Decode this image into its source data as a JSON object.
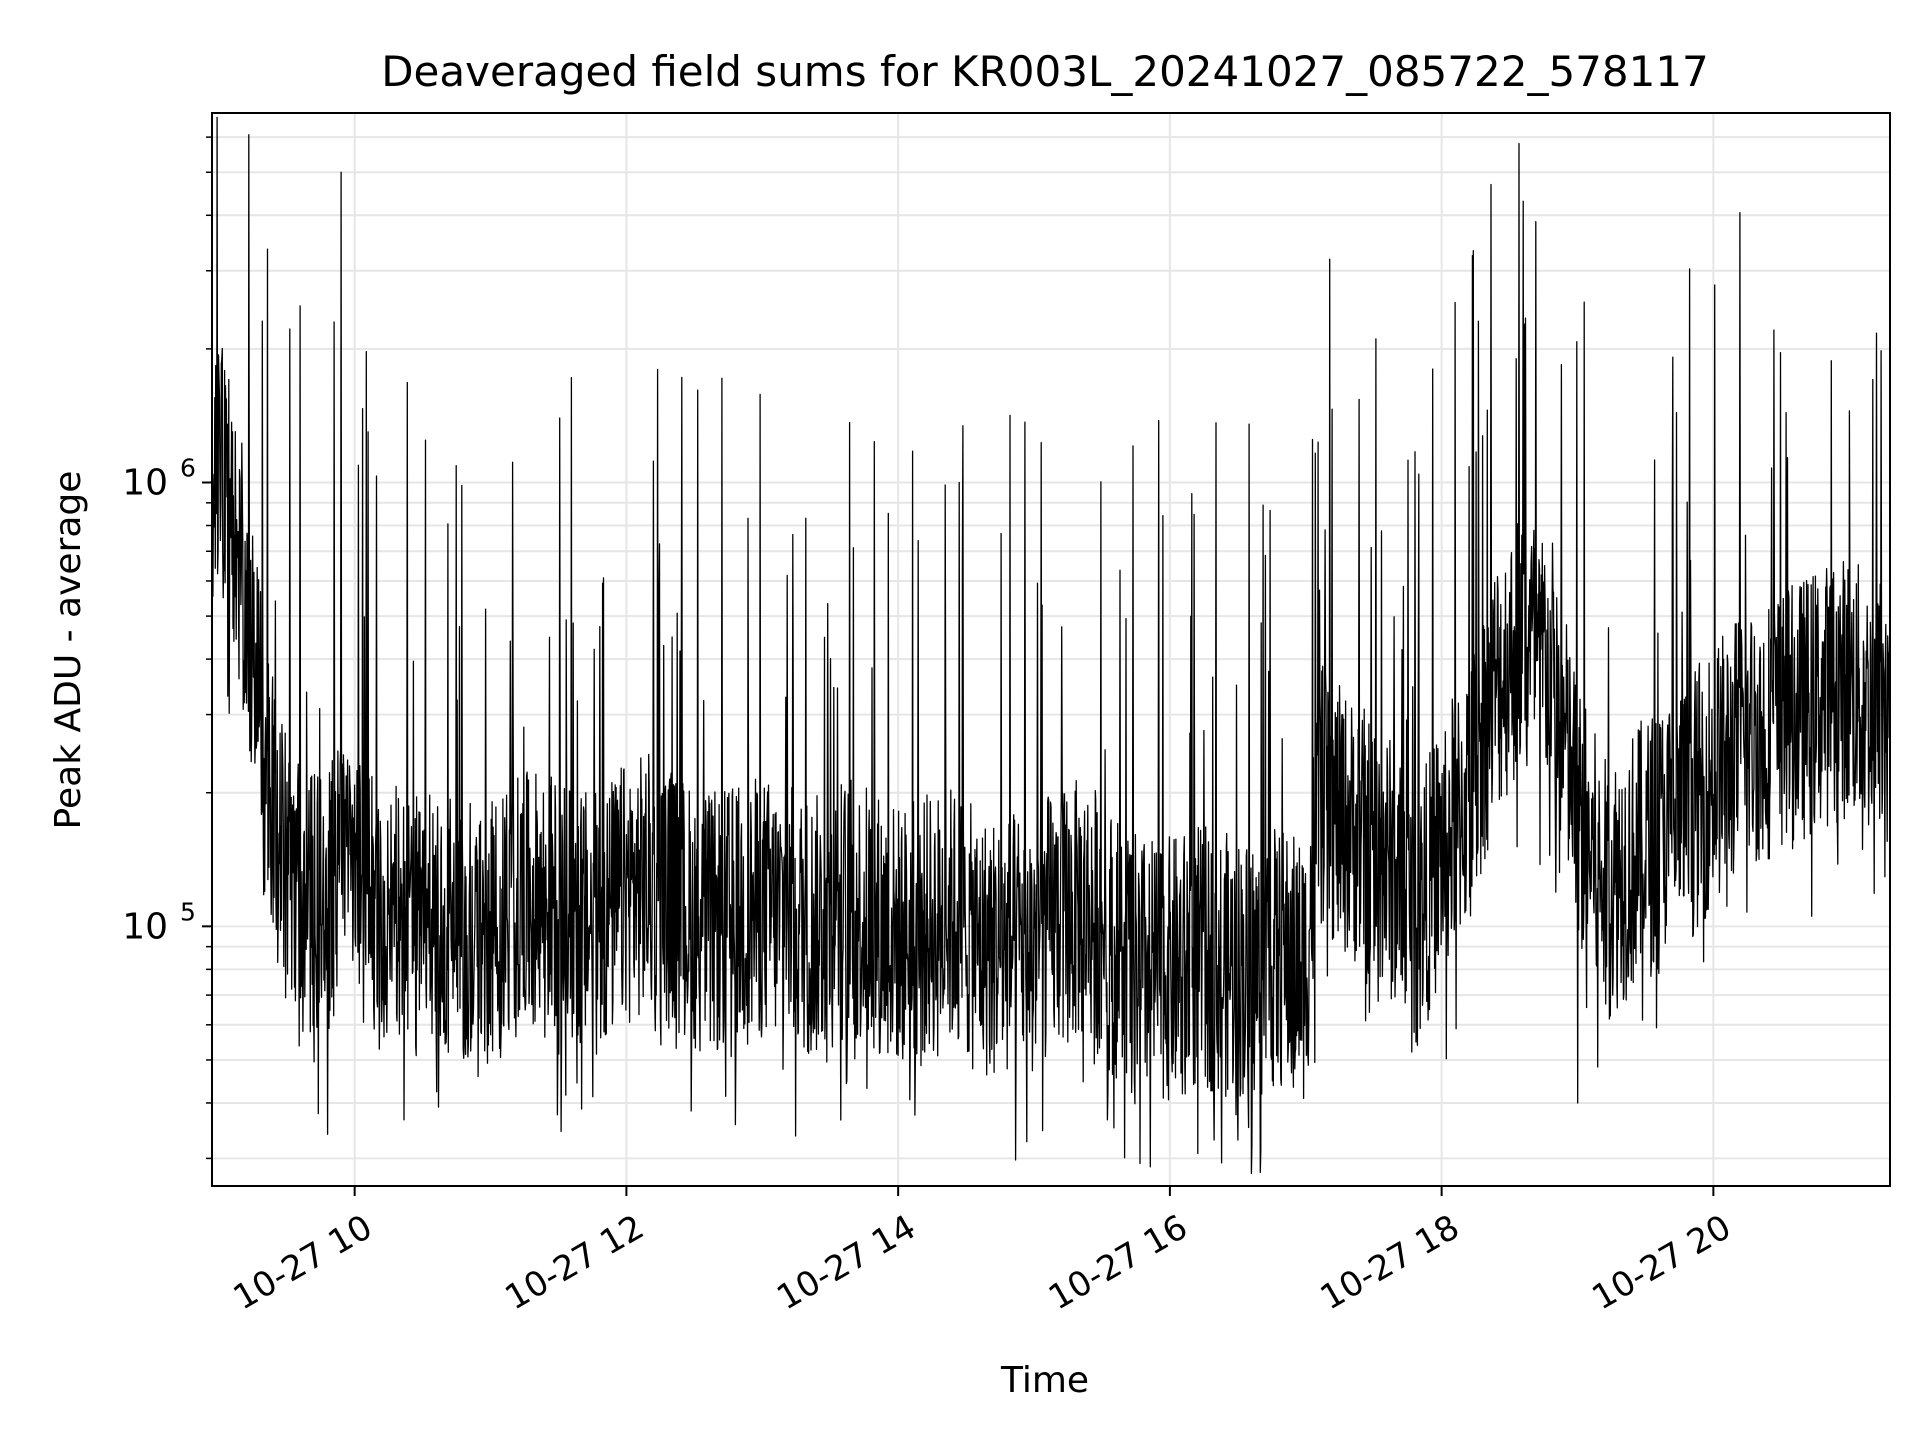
{
  "chart_data": {
    "type": "line",
    "title": "Deaveraged field sums for KR003L_20241027_085722_578117",
    "xlabel": "Time",
    "ylabel": "Peak ADU - average",
    "yscale": "log",
    "grid": true,
    "legend": "none",
    "x_range": [
      "2024-10-27 08:57",
      "2024-10-27 21:18"
    ],
    "ylim": [
      26000,
      6800000
    ],
    "x_ticks": [
      {
        "time": "2024-10-27 10:00",
        "label": "10-27 10"
      },
      {
        "time": "2024-10-27 12:00",
        "label": "10-27 12"
      },
      {
        "time": "2024-10-27 14:00",
        "label": "10-27 14"
      },
      {
        "time": "2024-10-27 16:00",
        "label": "10-27 16"
      },
      {
        "time": "2024-10-27 18:00",
        "label": "10-27 18"
      },
      {
        "time": "2024-10-27 20:00",
        "label": "10-27 20"
      }
    ],
    "y_ticks": [
      {
        "value": 100000,
        "base": "10",
        "exp": "5"
      },
      {
        "value": 1000000,
        "base": "10",
        "exp": "6"
      }
    ],
    "series": [
      {
        "color": "#000000",
        "x": [
          "2024-10-27 08:57",
          "2024-10-27 09:03",
          "2024-10-27 09:09",
          "2024-10-27 09:15",
          "2024-10-27 09:21",
          "2024-10-27 09:27",
          "2024-10-27 09:33",
          "2024-10-27 09:39",
          "2024-10-27 09:45",
          "2024-10-27 09:51",
          "2024-10-27 09:57",
          "2024-10-27 10:03",
          "2024-10-27 10:12",
          "2024-10-27 10:24",
          "2024-10-27 10:36",
          "2024-10-27 10:48",
          "2024-10-27 11:00",
          "2024-10-27 11:12",
          "2024-10-27 11:24",
          "2024-10-27 11:36",
          "2024-10-27 11:48",
          "2024-10-27 12:00",
          "2024-10-27 12:12",
          "2024-10-27 12:24",
          "2024-10-27 12:36",
          "2024-10-27 12:48",
          "2024-10-27 13:00",
          "2024-10-27 13:12",
          "2024-10-27 13:24",
          "2024-10-27 13:36",
          "2024-10-27 13:48",
          "2024-10-27 14:00",
          "2024-10-27 14:12",
          "2024-10-27 14:24",
          "2024-10-27 14:36",
          "2024-10-27 14:48",
          "2024-10-27 15:00",
          "2024-10-27 15:12",
          "2024-10-27 15:24",
          "2024-10-27 15:36",
          "2024-10-27 15:48",
          "2024-10-27 16:00",
          "2024-10-27 16:12",
          "2024-10-27 16:24",
          "2024-10-27 16:36",
          "2024-10-27 16:48",
          "2024-10-27 17:00",
          "2024-10-27 17:06",
          "2024-10-27 17:12",
          "2024-10-27 17:24",
          "2024-10-27 17:36",
          "2024-10-27 17:48",
          "2024-10-27 18:00",
          "2024-10-27 18:12",
          "2024-10-27 18:24",
          "2024-10-27 18:36",
          "2024-10-27 18:48",
          "2024-10-27 19:00",
          "2024-10-27 19:12",
          "2024-10-27 19:24",
          "2024-10-27 19:36",
          "2024-10-27 19:48",
          "2024-10-27 20:00",
          "2024-10-27 20:12",
          "2024-10-27 20:24",
          "2024-10-27 20:36",
          "2024-10-27 20:48",
          "2024-10-27 21:00",
          "2024-10-27 21:12",
          "2024-10-27 21:18"
        ],
        "y": [
          1100000,
          1000000,
          700000,
          400000,
          250000,
          150000,
          120000,
          110000,
          115000,
          120000,
          180000,
          120000,
          110000,
          100000,
          105000,
          100000,
          95000,
          110000,
          115000,
          105000,
          100000,
          120000,
          125000,
          110000,
          100000,
          105000,
          110000,
          105000,
          100000,
          110000,
          105000,
          95000,
          100000,
          105000,
          90000,
          90000,
          95000,
          105000,
          110000,
          90000,
          80000,
          80000,
          85000,
          82000,
          80000,
          85000,
          80000,
          200000,
          180000,
          160000,
          140000,
          100000,
          150000,
          200000,
          350000,
          450000,
          400000,
          180000,
          120000,
          140000,
          160000,
          180000,
          220000,
          260000,
          280000,
          300000,
          330000,
          350000,
          300000,
          400000
        ],
        "spike_highs": [
          [
            "2024-10-27 09:36",
            2500000
          ],
          [
            "2024-10-27 09:51",
            2300000
          ],
          [
            "2024-10-27 09:54",
            5000000
          ],
          [
            "2024-10-27 10:06",
            1300000
          ],
          [
            "2024-10-27 14:27",
            1000000
          ],
          [
            "2024-10-27 17:03",
            1250000
          ],
          [
            "2024-10-27 18:33",
            1900000
          ],
          [
            "2024-10-27 18:36",
            4300000
          ],
          [
            "2024-10-27 21:00",
            1450000
          ]
        ],
        "spike_lows": [
          [
            "2024-10-27 09:48",
            34000
          ],
          [
            "2024-10-27 16:30",
            33000
          ],
          [
            "2024-10-27 19:00",
            40000
          ]
        ]
      }
    ]
  }
}
